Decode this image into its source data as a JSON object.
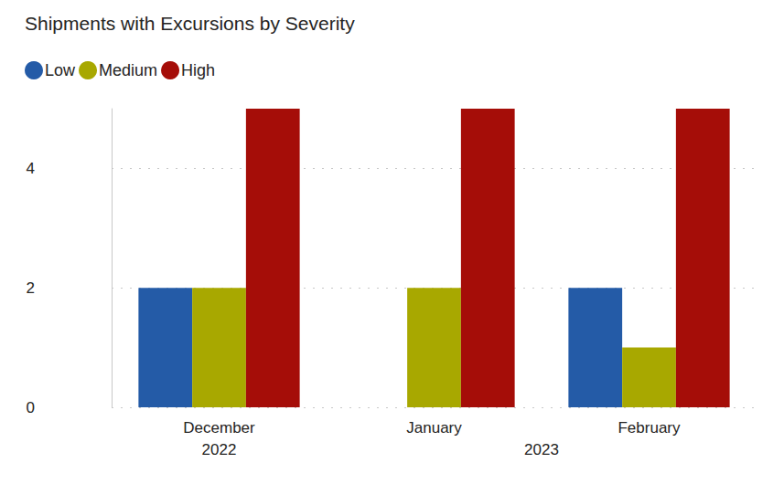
{
  "chart_data": {
    "type": "bar",
    "title": "Shipments with Excursions by Severity",
    "categories": [
      "December",
      "January",
      "February"
    ],
    "year_groups": [
      {
        "label": "2022",
        "count": 1
      },
      {
        "label": "2023",
        "count": 2
      }
    ],
    "series": [
      {
        "name": "Low",
        "color": "#245ba7",
        "values": [
          2,
          0,
          2
        ]
      },
      {
        "name": "Medium",
        "color": "#a8a800",
        "values": [
          2,
          2,
          1
        ]
      },
      {
        "name": "High",
        "color": "#a50d08",
        "values": [
          5,
          5,
          5
        ]
      }
    ],
    "ylim": [
      0,
      5
    ],
    "yticks": [
      0,
      2,
      4
    ],
    "grid": true,
    "legend": "top-left"
  }
}
